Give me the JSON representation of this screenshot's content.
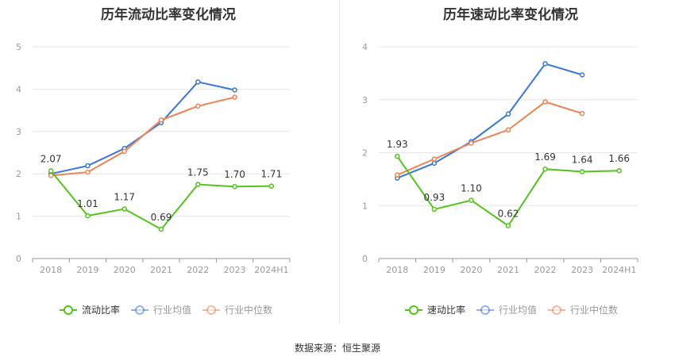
{
  "charts": [
    {
      "title": "历年流动比率变化情况",
      "chart_data": {
        "type": "line",
        "categories": [
          "2018",
          "2019",
          "2020",
          "2021",
          "2022",
          "2023",
          "2024H1"
        ],
        "ylim": [
          0,
          5
        ],
        "yticks": [
          0,
          1,
          2,
          3,
          4,
          5
        ],
        "grid": true,
        "legend_position": "bottom",
        "series": [
          {
            "name": "流动比率",
            "color": "#52c41a",
            "values": [
              2.07,
              1.01,
              1.17,
              0.69,
              1.75,
              1.7,
              1.71
            ],
            "labels": [
              "2.07",
              "1.01",
              "1.17",
              "0.69",
              "1.75",
              "1.70",
              "1.71"
            ]
          },
          {
            "name": "行业均值",
            "color": "#3a75d8",
            "values": [
              2.0,
              2.19,
              2.6,
              3.21,
              4.17,
              3.98,
              null
            ]
          },
          {
            "name": "行业中位数",
            "color": "#ef8354",
            "values": [
              1.96,
              2.04,
              2.53,
              3.27,
              3.6,
              3.81,
              null
            ]
          }
        ]
      }
    },
    {
      "title": "历年速动比率变化情况",
      "chart_data": {
        "type": "line",
        "categories": [
          "2018",
          "2019",
          "2020",
          "2021",
          "2022",
          "2023",
          "2024H1"
        ],
        "ylim": [
          0,
          4
        ],
        "yticks": [
          0,
          1,
          2,
          3,
          4
        ],
        "grid": true,
        "legend_position": "bottom",
        "series": [
          {
            "name": "速动比率",
            "color": "#52c41a",
            "values": [
              1.93,
              0.93,
              1.1,
              0.62,
              1.69,
              1.64,
              1.66
            ],
            "labels": [
              "1.93",
              "0.93",
              "1.10",
              "0.62",
              "1.69",
              "1.64",
              "1.66"
            ]
          },
          {
            "name": "行业均值",
            "color": "#3a75d8",
            "values": [
              1.52,
              1.8,
              2.21,
              2.73,
              3.68,
              3.47,
              null
            ]
          },
          {
            "name": "行业中位数",
            "color": "#ef8354",
            "values": [
              1.58,
              1.88,
              2.18,
              2.43,
              2.96,
              2.74,
              null
            ]
          }
        ]
      }
    }
  ],
  "source": "数据来源：恒生聚源"
}
